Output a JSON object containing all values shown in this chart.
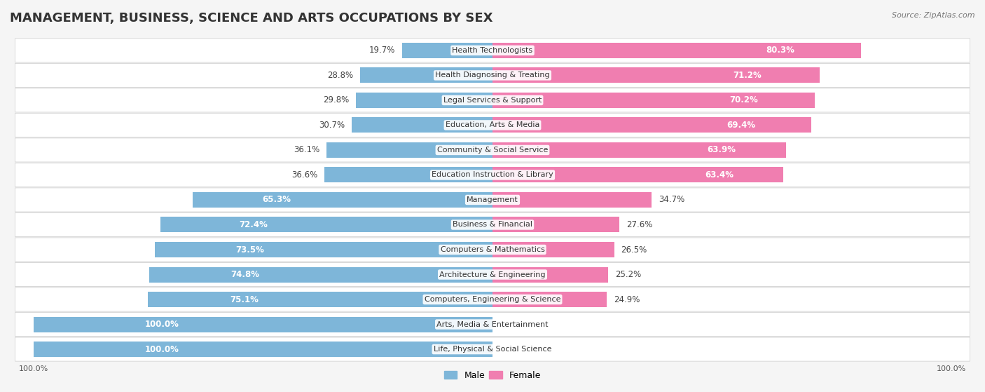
{
  "title": "MANAGEMENT, BUSINESS, SCIENCE AND ARTS OCCUPATIONS BY SEX",
  "source": "Source: ZipAtlas.com",
  "categories": [
    "Life, Physical & Social Science",
    "Arts, Media & Entertainment",
    "Computers, Engineering & Science",
    "Architecture & Engineering",
    "Computers & Mathematics",
    "Business & Financial",
    "Management",
    "Education Instruction & Library",
    "Community & Social Service",
    "Education, Arts & Media",
    "Legal Services & Support",
    "Health Diagnosing & Treating",
    "Health Technologists"
  ],
  "male_pct": [
    100.0,
    100.0,
    75.1,
    74.8,
    73.5,
    72.4,
    65.3,
    36.6,
    36.1,
    30.7,
    29.8,
    28.8,
    19.7
  ],
  "female_pct": [
    0.0,
    0.0,
    24.9,
    25.2,
    26.5,
    27.6,
    34.7,
    63.4,
    63.9,
    69.4,
    70.2,
    71.2,
    80.3
  ],
  "male_color": "#7EB6D9",
  "female_color": "#F07EB0",
  "bg_color": "#F5F5F5",
  "title_fontsize": 13,
  "label_fontsize": 8.5,
  "axis_label_fontsize": 8,
  "legend_fontsize": 9
}
